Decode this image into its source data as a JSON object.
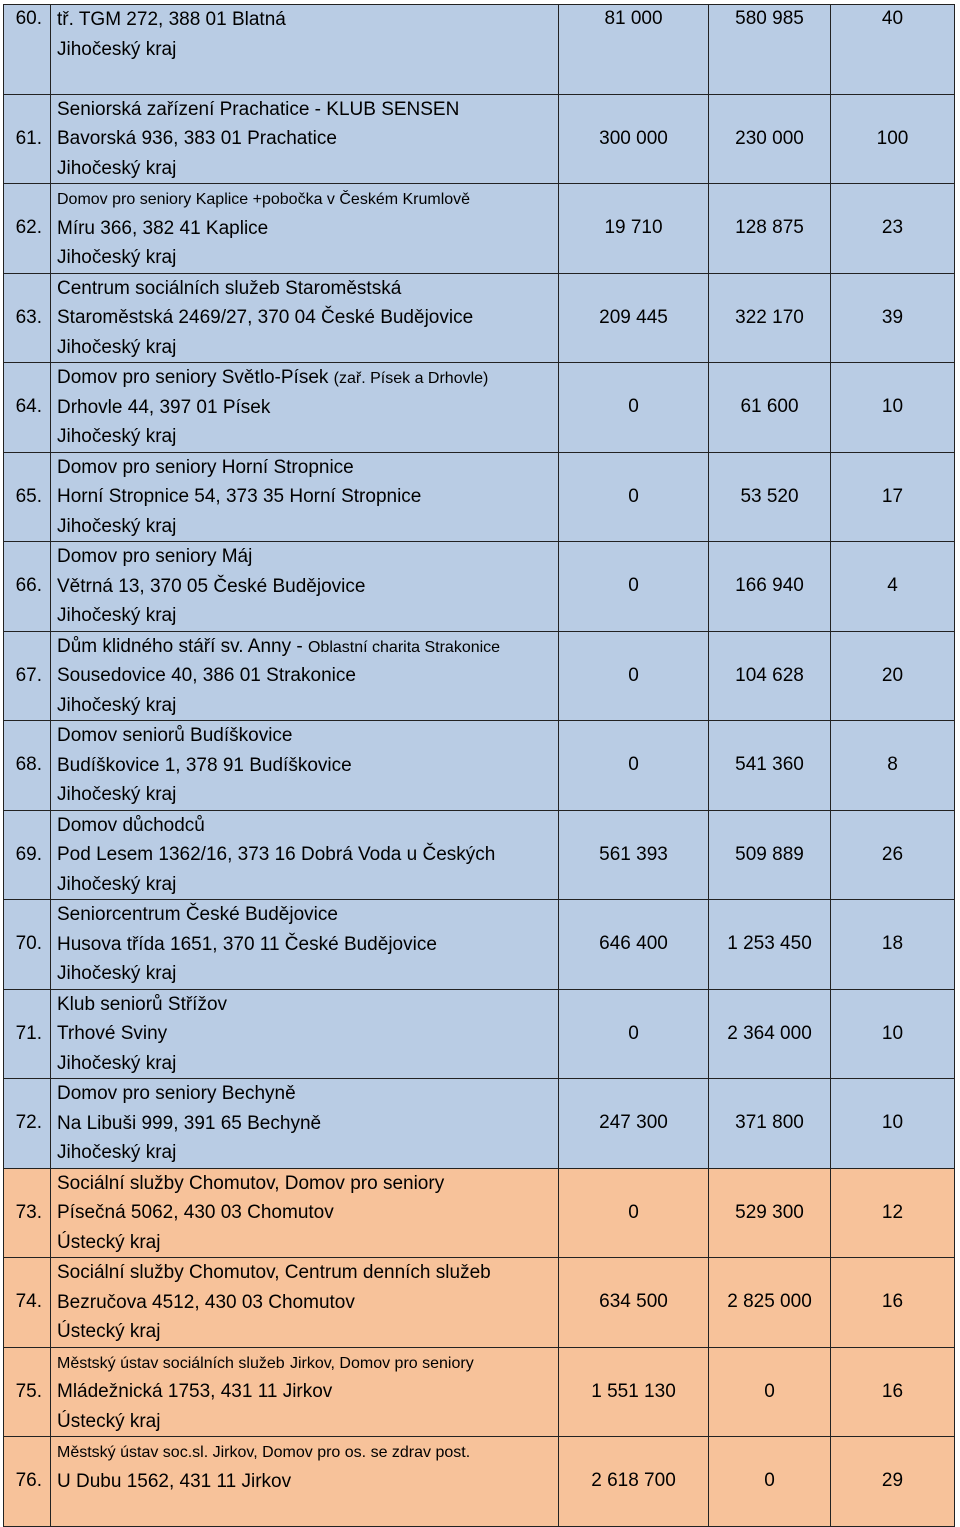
{
  "rows": [
    {
      "num": "60.",
      "name": "",
      "street": "tř. TGM 272, 388 01 Blatná",
      "region": "Jihočeský kraj",
      "v1": "81 000",
      "v2": "580 985",
      "v3": "40",
      "color": "blue"
    },
    {
      "num": "61.",
      "name": "Seniorská zařízení Prachatice - KLUB SENSEN",
      "street": "Bavorská 936, 383 01 Prachatice",
      "region": "Jihočeský kraj",
      "v1": "300 000",
      "v2": "230 000",
      "v3": "100",
      "color": "blue"
    },
    {
      "num": "62.",
      "name": "Domov pro seniory Kaplice +pobočka v Českém Krumlově",
      "street": "Míru 366, 382 41 Kaplice",
      "region": "Jihočeský kraj",
      "v1": "19 710",
      "v2": "128 875",
      "v3": "23",
      "color": "blue"
    },
    {
      "num": "63.",
      "name": "Centrum sociálních služeb Staroměstská",
      "street": "Staroměstská 2469/27, 370 04 České Budějovice",
      "region": "Jihočeský kraj",
      "v1": "209 445",
      "v2": "322 170",
      "v3": "39",
      "color": "blue"
    },
    {
      "num": "64.",
      "name": "Domov pro seniory Světlo-Písek",
      "name_small": "(zař. Písek a Drhovle)",
      "street": "Drhovle 44, 397 01 Písek",
      "region": "Jihočeský kraj",
      "v1": "0",
      "v2": "61 600",
      "v3": "10",
      "color": "blue"
    },
    {
      "num": "65.",
      "name": "Domov pro seniory Horní Stropnice",
      "street": "Horní Stropnice 54, 373 35 Horní Stropnice",
      "region": "Jihočeský kraj",
      "v1": "0",
      "v2": "53 520",
      "v3": "17",
      "color": "blue"
    },
    {
      "num": "66.",
      "name": "Domov pro seniory Máj",
      "street": "Větrná 13, 370 05 České Budějovice",
      "region": "Jihočeský kraj",
      "v1": "0",
      "v2": "166 940",
      "v3": "4",
      "color": "blue"
    },
    {
      "num": "67.",
      "name": "Dům klidného stáří sv. Anny -",
      "name_small": "Oblastní charita Strakonice",
      "street": "Sousedovice 40, 386 01 Strakonice",
      "region": "Jihočeský kraj",
      "v1": "0",
      "v2": "104 628",
      "v3": "20",
      "color": "blue"
    },
    {
      "num": "68.",
      "name": "Domov seniorů Budíškovice",
      "street": "Budíškovice 1, 378 91 Budíškovice",
      "region": "Jihočeský kraj",
      "v1": "0",
      "v2": "541 360",
      "v3": "8",
      "color": "blue"
    },
    {
      "num": "69.",
      "name": "Domov důchodců",
      "street": "Pod Lesem 1362/16, 373 16 Dobrá Voda u Českých",
      "region": "Jihočeský kraj",
      "v1": "561 393",
      "v2": "509 889",
      "v3": "26",
      "color": "blue"
    },
    {
      "num": "70.",
      "name": "Seniorcentrum České Budějovice",
      "street": "Husova třída 1651, 370 11 České Budějovice",
      "region": "Jihočeský kraj",
      "v1": "646 400",
      "v2": "1 253 450",
      "v3": "18",
      "color": "blue"
    },
    {
      "num": "71.",
      "name": "Klub seniorů Střížov",
      "street": "Trhové Sviny",
      "region": "Jihočeský kraj",
      "v1": "0",
      "v2": "2 364 000",
      "v3": "10",
      "color": "blue"
    },
    {
      "num": "72.",
      "name": "Domov pro seniory Bechyně",
      "street": "Na Libuši 999, 391 65 Bechyně",
      "region": "Jihočeský kraj",
      "v1": "247 300",
      "v2": "371 800",
      "v3": "10",
      "color": "blue"
    },
    {
      "num": "73.",
      "name": "Sociální služby Chomutov, Domov pro seniory",
      "street": "Písečná 5062, 430 03 Chomutov",
      "region": "Ústecký kraj",
      "v1": "0",
      "v2": "529 300",
      "v3": "12",
      "color": "orange"
    },
    {
      "num": "74.",
      "name": "Sociální služby Chomutov, Centrum denních služeb",
      "street": "Bezručova 4512, 430 03 Chomutov",
      "region": "Ústecký kraj",
      "v1": "634 500",
      "v2": "2 825 000",
      "v3": "16",
      "color": "orange"
    },
    {
      "num": "75.",
      "name": "Městský ústav sociálních služeb",
      "name_small": "Jirkov, Domov pro seniory",
      "street": "Mládežnická 1753, 431 11 Jirkov",
      "region": "Ústecký kraj",
      "v1": "1 551 130",
      "v2": "0",
      "v3": "16",
      "color": "orange"
    },
    {
      "num": "76.",
      "name": "Městský ústav soc.sl. Jirkov, Domov pro os. se zdrav post.",
      "street": "U Dubu 1562, 431 11 Jirkov",
      "region": "",
      "v1": "2 618 700",
      "v2": "0",
      "v3": "29",
      "color": "orange"
    }
  ]
}
